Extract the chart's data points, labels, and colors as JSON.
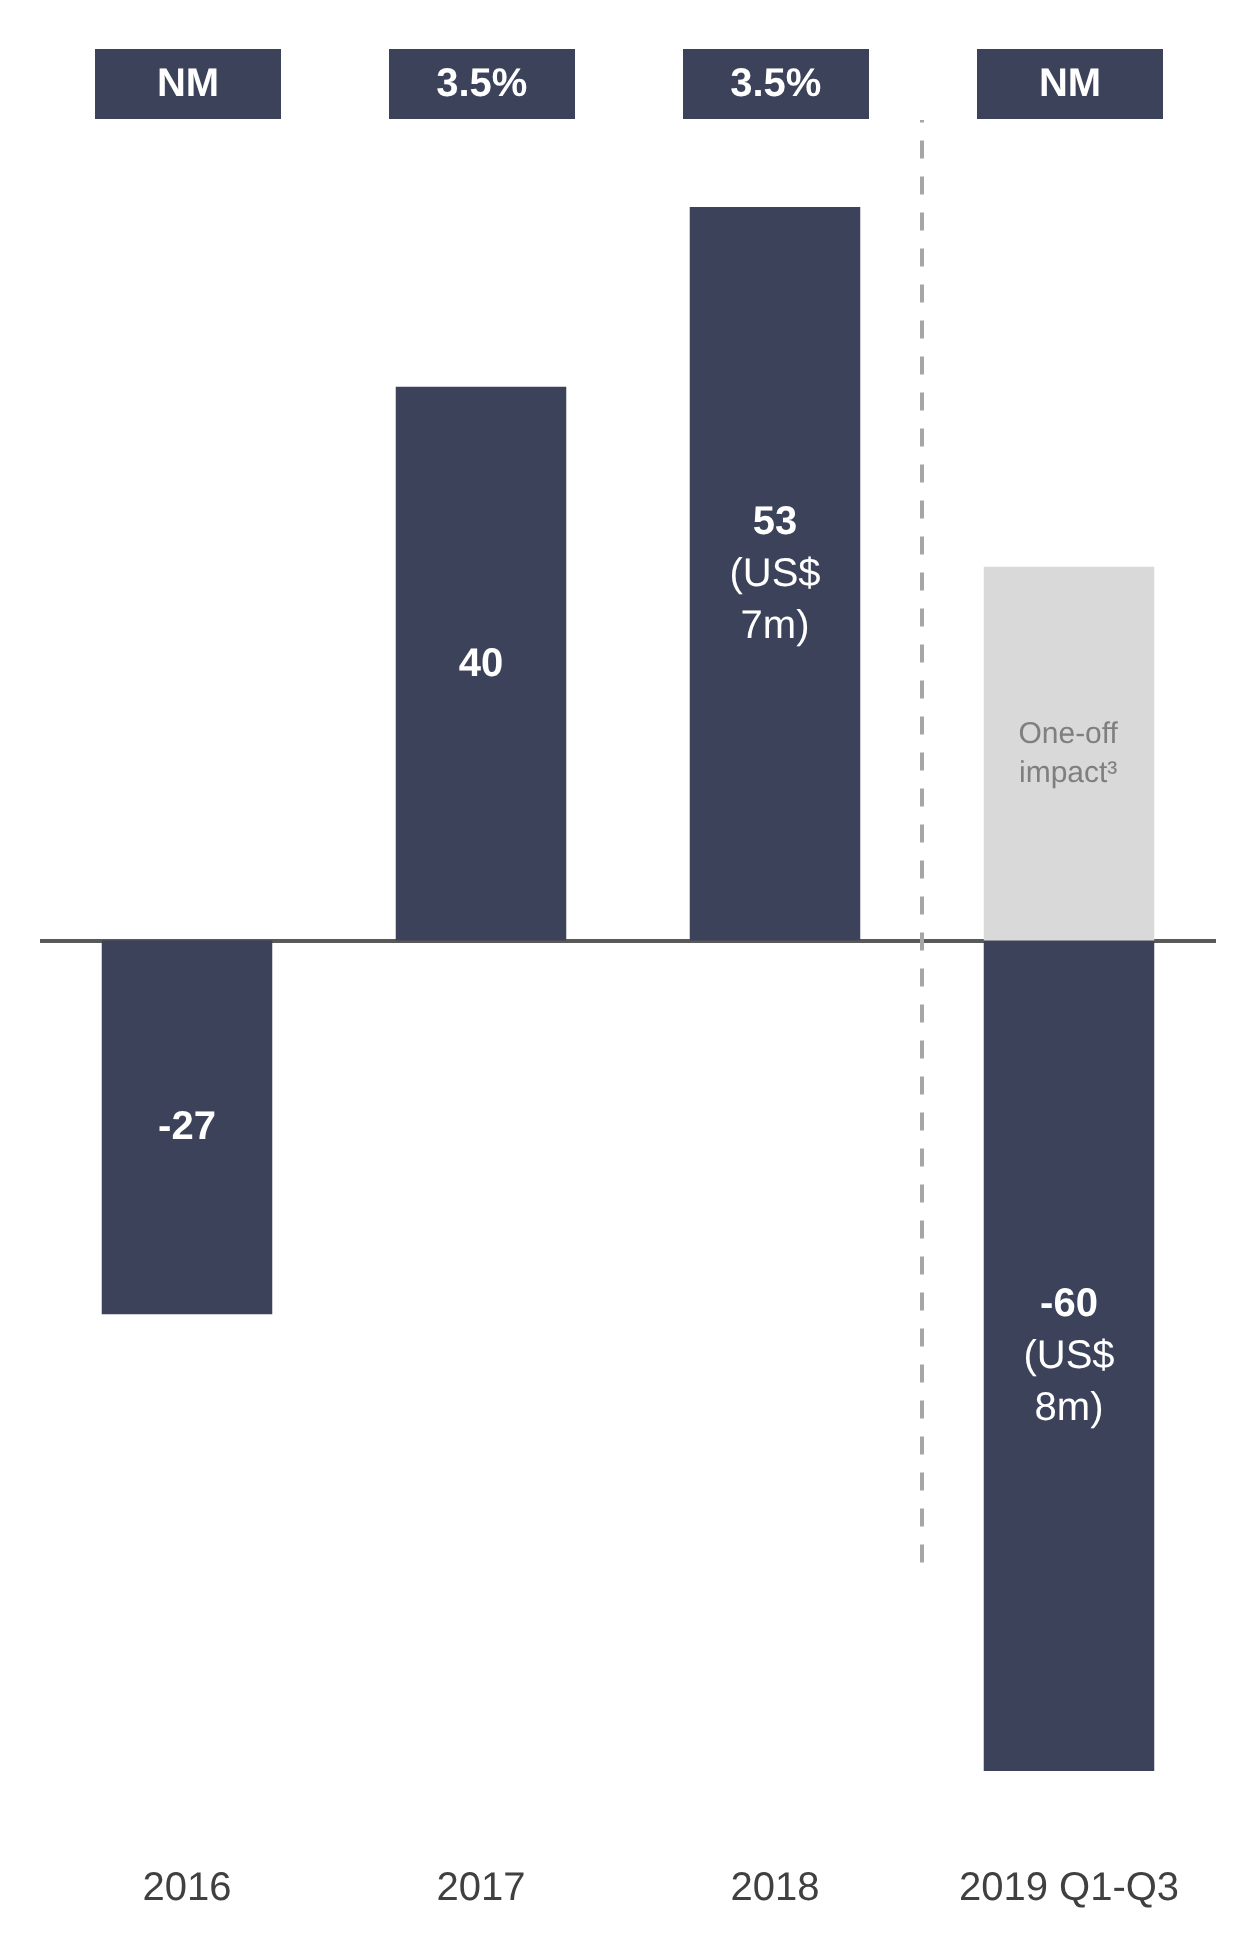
{
  "chart_data": {
    "type": "bar",
    "stacked": true,
    "categories": [
      "2016",
      "2017",
      "2018",
      "2019 Q1-Q3"
    ],
    "series": [
      {
        "values": [
          -27,
          40,
          53,
          -60
        ],
        "color": "#3c4259",
        "value_labels": [
          "-27",
          "40",
          "53 (US$ 7m)",
          "-60 (US$ 8m)"
        ]
      },
      {
        "values": [
          null,
          null,
          null,
          27
        ],
        "color": "#d9d9d9",
        "value_labels": [
          null,
          null,
          null,
          "One-off impact³"
        ]
      }
    ],
    "tick_labels": "x",
    "annotations": [
      "NM",
      "3.5%",
      "3.5%",
      "NM"
    ]
  }
}
